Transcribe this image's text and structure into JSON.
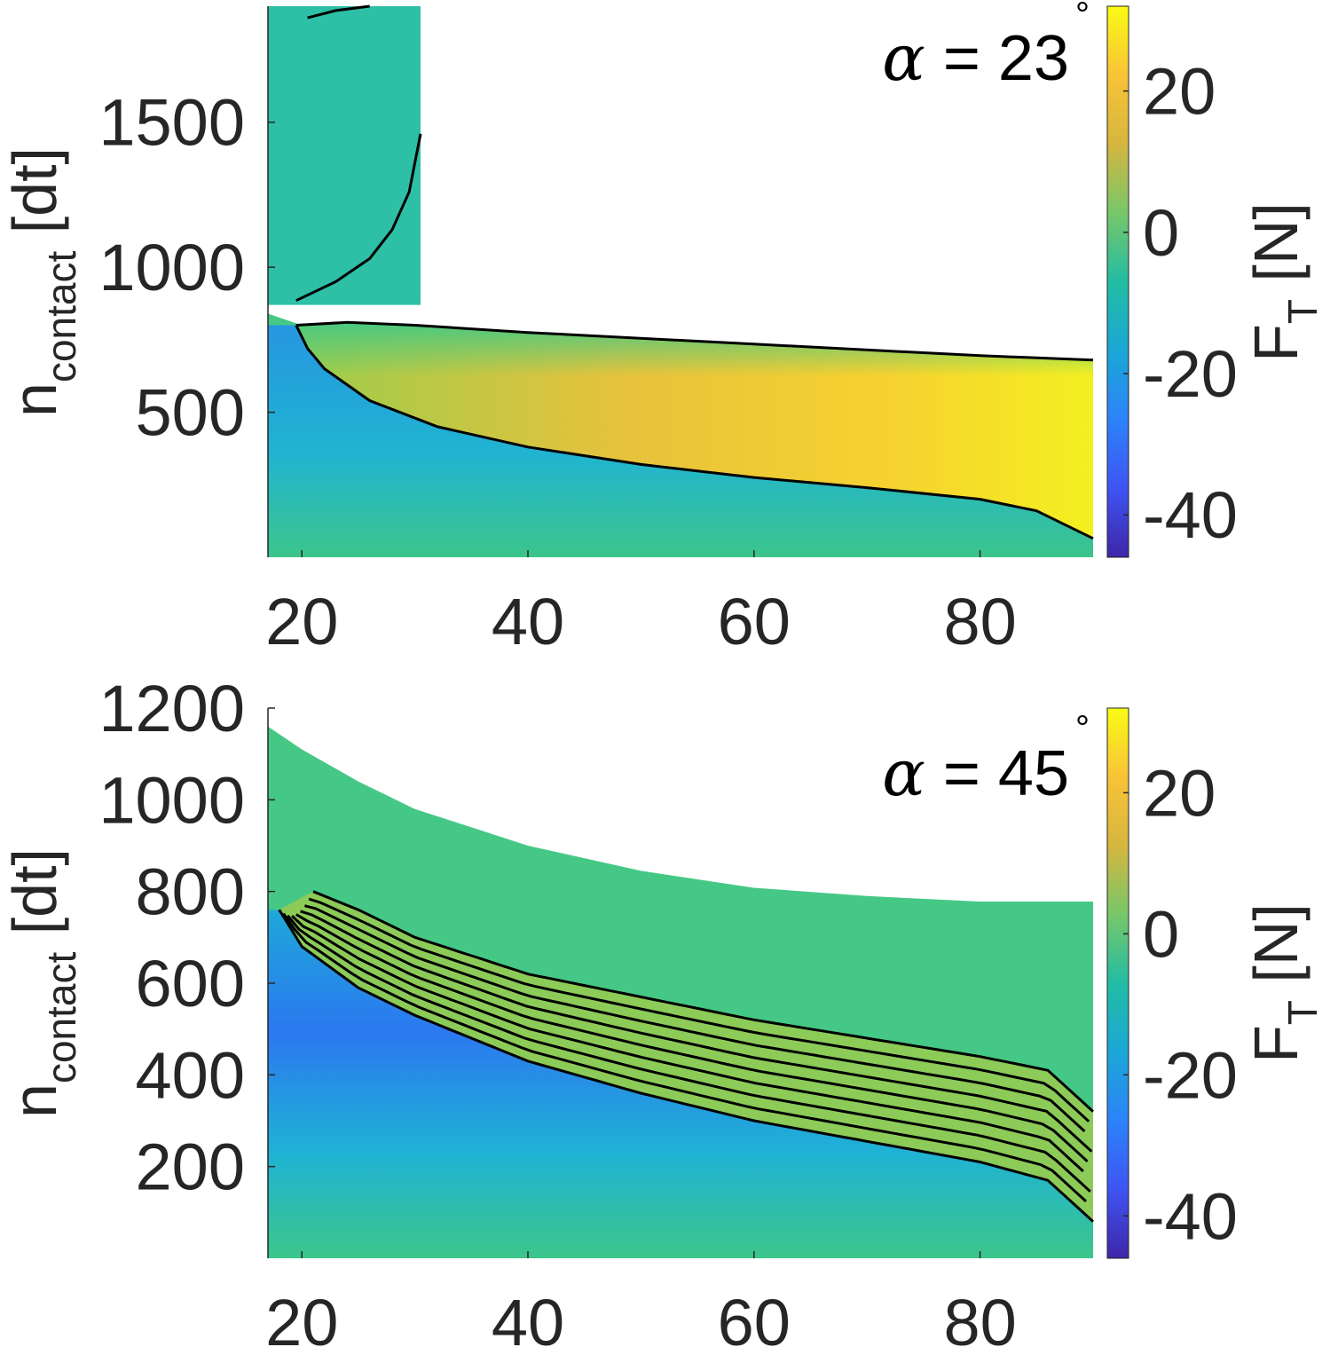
{
  "chart_data": [
    {
      "type": "heatmap",
      "id": "top",
      "annotation": {
        "symbol": "α",
        "text": " = 23",
        "degree": "°"
      },
      "ylabel": {
        "main": "n",
        "sub": "contact",
        "unit": " [dt]"
      },
      "xlim": [
        17,
        90
      ],
      "ylim": [
        0,
        1900
      ],
      "xticks": [
        20,
        40,
        60,
        80
      ],
      "xtick_labels": [
        "20",
        "40",
        "60",
        "80"
      ],
      "yticks": [
        500,
        1000,
        1500
      ],
      "ytick_labels": [
        "500",
        "1000",
        "1500"
      ],
      "colorbar": {
        "label": "F",
        "label_sub": "T",
        "label_unit": " [N]",
        "clim": [
          -46,
          32
        ],
        "ticks": [
          -40,
          -20,
          0,
          20
        ],
        "tick_labels": [
          "-40",
          "-20",
          "0",
          "20"
        ]
      },
      "regions": [
        {
          "name": "upper-block",
          "x_range": [
            17,
            30.5
          ],
          "y_range": [
            870,
            1900
          ],
          "value": -2
        },
        {
          "name": "main-region",
          "x_range": [
            17,
            90
          ],
          "upper_boundary": [
            [
              17,
              840
            ],
            [
              20,
              800
            ],
            [
              30,
              795
            ],
            [
              40,
              770
            ],
            [
              60,
              730
            ],
            [
              80,
              690
            ],
            [
              90,
              675
            ]
          ]
        }
      ],
      "contour_level": 0,
      "contours": [
        [
          [
            19.5,
            800
          ],
          [
            20.5,
            720
          ],
          [
            22,
            650
          ],
          [
            26,
            540
          ],
          [
            32,
            450
          ],
          [
            40,
            380
          ],
          [
            50,
            320
          ],
          [
            60,
            275
          ],
          [
            70,
            240
          ],
          [
            80,
            200
          ],
          [
            85,
            160
          ],
          [
            90,
            65
          ]
        ],
        [
          [
            19.5,
            800
          ],
          [
            24,
            810
          ],
          [
            30,
            800
          ],
          [
            40,
            775
          ],
          [
            60,
            735
          ],
          [
            80,
            695
          ],
          [
            90,
            680
          ]
        ],
        [
          [
            19.5,
            885
          ],
          [
            23,
            950
          ],
          [
            26,
            1030
          ],
          [
            28,
            1130
          ],
          [
            29.5,
            1260
          ],
          [
            30.5,
            1460
          ]
        ],
        [
          [
            20.5,
            1860
          ],
          [
            23,
            1885
          ],
          [
            26,
            1900
          ]
        ]
      ]
    },
    {
      "type": "heatmap",
      "id": "bottom",
      "annotation": {
        "symbol": "α",
        "text": " = 45",
        "degree": "°"
      },
      "ylabel": {
        "main": "n",
        "sub": "contact",
        "unit": " [dt]"
      },
      "xlim": [
        17,
        90
      ],
      "ylim": [
        0,
        1200
      ],
      "xticks": [
        20,
        40,
        60,
        80
      ],
      "xtick_labels": [
        "20",
        "40",
        "60",
        "80"
      ],
      "yticks": [
        200,
        400,
        600,
        800,
        1000,
        1200
      ],
      "ytick_labels": [
        "200",
        "400",
        "600",
        "800",
        "1000",
        "1200"
      ],
      "colorbar": {
        "label": "F",
        "label_sub": "T",
        "label_unit": " [N]",
        "clim": [
          -46,
          32
        ],
        "ticks": [
          -40,
          -20,
          0,
          20
        ],
        "tick_labels": [
          "-40",
          "-20",
          "0",
          "20"
        ]
      },
      "regions": [
        {
          "name": "main-region",
          "x_range": [
            17,
            90
          ],
          "upper_boundary": [
            [
              17,
              1160
            ],
            [
              20,
              1110
            ],
            [
              25,
              1040
            ],
            [
              30,
              980
            ],
            [
              40,
              900
            ],
            [
              50,
              845
            ],
            [
              60,
              808
            ],
            [
              70,
              790
            ],
            [
              80,
              778
            ],
            [
              90,
              778
            ]
          ]
        }
      ],
      "contour_level": 0,
      "contour_count": 9,
      "contour_bottom": [
        [
          18,
          760
        ],
        [
          20,
          680
        ],
        [
          25,
          590
        ],
        [
          30,
          530
        ],
        [
          40,
          430
        ],
        [
          50,
          360
        ],
        [
          60,
          300
        ],
        [
          70,
          255
        ],
        [
          80,
          210
        ],
        [
          86,
          170
        ],
        [
          90,
          80
        ]
      ],
      "contour_top": [
        [
          21,
          800
        ],
        [
          25,
          760
        ],
        [
          30,
          700
        ],
        [
          40,
          620
        ],
        [
          50,
          570
        ],
        [
          60,
          520
        ],
        [
          70,
          480
        ],
        [
          80,
          440
        ],
        [
          86,
          410
        ],
        [
          90,
          320
        ]
      ]
    }
  ]
}
